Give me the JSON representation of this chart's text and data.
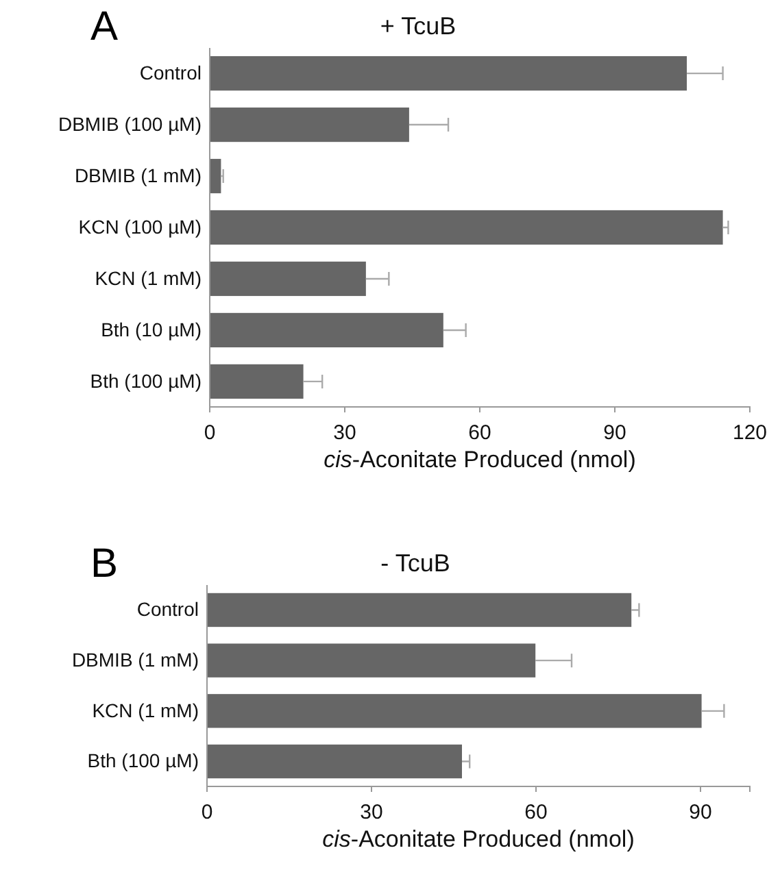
{
  "chart_data": [
    {
      "type": "bar",
      "orientation": "horizontal",
      "title": "+ TcuB",
      "xlabel": "cis-Aconitate Produced (nmol)",
      "annotations": [
        "A"
      ],
      "categories": [
        "Control",
        "DBMIB (100 µM)",
        "DBMIB (1 mM)",
        "KCN (100 µM)",
        "KCN (1 mM)",
        "Bth (10 µM)",
        "Bth (100 µM)"
      ],
      "values": [
        106,
        44.3,
        2.5,
        114,
        34.7,
        51.9,
        20.8
      ],
      "color": "#666666",
      "errors": [
        [
          106,
          114
        ],
        [
          44.3,
          53
        ],
        [
          2.5,
          3
        ],
        [
          114,
          115.2
        ],
        [
          34.7,
          39.8
        ],
        [
          51.9,
          56.9
        ],
        [
          20.8,
          25
        ]
      ],
      "xlim": [
        0,
        120
      ],
      "xticks": [
        0,
        30,
        60,
        90,
        120
      ],
      "grid": false
    },
    {
      "type": "bar",
      "orientation": "horizontal",
      "title": "- TcuB",
      "xlabel": "cis-Aconitate Produced (nmol)",
      "annotations": [
        "B"
      ],
      "categories": [
        "Control",
        "DBMIB (1 mM)",
        "KCN (1 mM)",
        "Bth (100 µM)"
      ],
      "values": [
        77.4,
        59.9,
        90.2,
        46.5
      ],
      "color": "#666666",
      "errors": [
        [
          77.4,
          78.8
        ],
        [
          59.9,
          66.5
        ],
        [
          90.2,
          94.3
        ],
        [
          46.5,
          47.9
        ]
      ],
      "xlim": [
        0,
        99
      ],
      "xticks": [
        0,
        30,
        60,
        90
      ],
      "grid": false
    }
  ]
}
